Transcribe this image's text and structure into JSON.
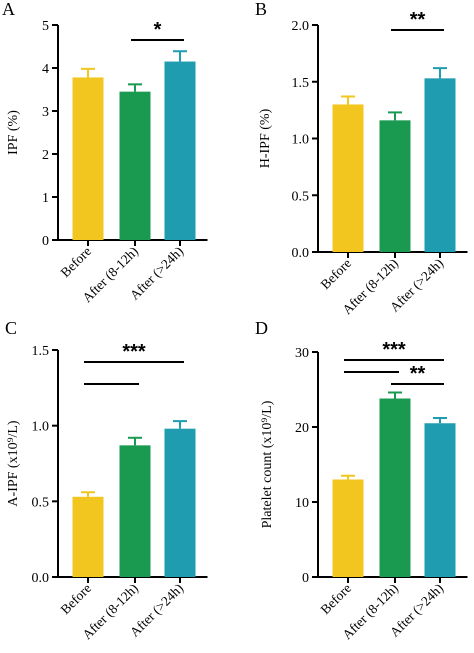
{
  "colors": {
    "before": "#f2c51f",
    "after_8_12h": "#1a9a50",
    "after_24h": "#1f9cb0",
    "axis": "#000000"
  },
  "chart_data": [
    {
      "panel": "A",
      "type": "bar",
      "categories": [
        "Before",
        "After (8-12h)",
        "After (>24h)"
      ],
      "values": [
        3.78,
        3.45,
        4.15
      ],
      "errors": [
        0.2,
        0.17,
        0.24
      ],
      "ylabel": "IPF (%)",
      "ylim": [
        0,
        5
      ],
      "yticks": [
        "0",
        "1",
        "2",
        "3",
        "4",
        "5"
      ],
      "significance": [
        {
          "from": 1,
          "to": 2,
          "label": "*"
        }
      ]
    },
    {
      "panel": "B",
      "type": "bar",
      "categories": [
        "Before",
        "After (8-12h)",
        "After (>24h)"
      ],
      "values": [
        1.3,
        1.16,
        1.53
      ],
      "errors": [
        0.07,
        0.07,
        0.09
      ],
      "ylabel": "H-IPF (%)",
      "ylim": [
        0,
        2
      ],
      "yticks": [
        "0.0",
        "0.5",
        "1.0",
        "1.5",
        "2.0"
      ],
      "significance": [
        {
          "from": 1,
          "to": 2,
          "label": "**"
        }
      ]
    },
    {
      "panel": "C",
      "type": "bar",
      "categories": [
        "Before",
        "After (8-12h)",
        "After (>24h)"
      ],
      "values": [
        0.53,
        0.87,
        0.98
      ],
      "errors": [
        0.03,
        0.05,
        0.05
      ],
      "ylabel": "A-IPF (x10⁹/L)",
      "ylim": [
        0,
        1.5
      ],
      "yticks": [
        "0.0",
        "0.5",
        "1.0",
        "1.5"
      ],
      "significance": [
        {
          "from": 0,
          "to": 2,
          "label": "***"
        },
        {
          "from": 0,
          "to": 1,
          "label": ""
        }
      ]
    },
    {
      "panel": "D",
      "type": "bar",
      "categories": [
        "Before",
        "After (8-12h)",
        "After (>24h)"
      ],
      "values": [
        13.0,
        23.8,
        20.5
      ],
      "errors": [
        0.5,
        0.8,
        0.7
      ],
      "ylabel": "Platelet count (x10⁹/L)",
      "ylim": [
        0,
        30
      ],
      "yticks": [
        "0",
        "10",
        "20",
        "30"
      ],
      "significance": [
        {
          "from": 0,
          "to": 2,
          "label": "***"
        },
        {
          "from": 0,
          "to": 1,
          "label": ""
        },
        {
          "from": 1,
          "to": 2,
          "label": "**"
        }
      ]
    }
  ]
}
